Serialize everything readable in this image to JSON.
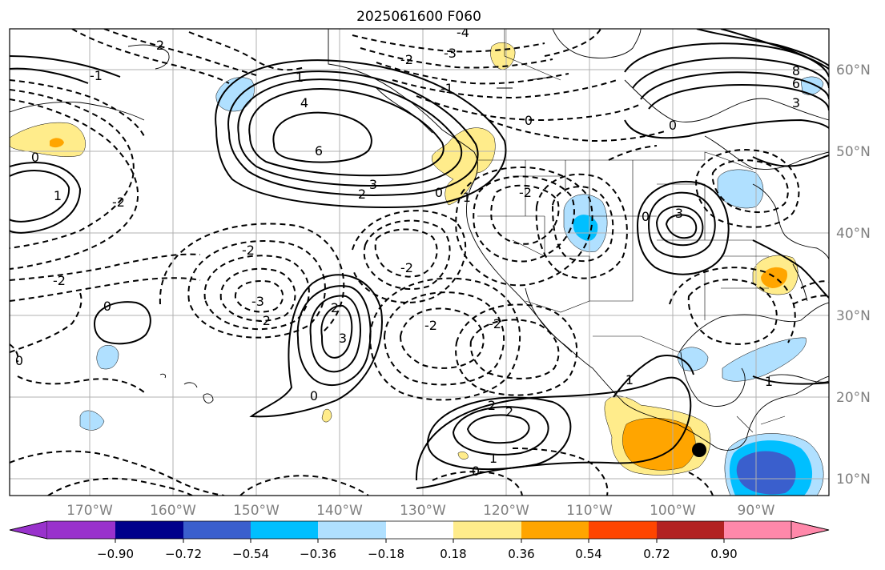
{
  "title": "2025061600 F060",
  "colors": {
    "purple": "#9932cc",
    "navy": "#00008b",
    "mid_blue": "#3a5fcd",
    "sky_blue": "#00bfff",
    "light_blue": "#b0e0ff",
    "white": "#ffffff",
    "light_yellow": "#ffec8b",
    "orange": "#ffa500",
    "red_orange": "#ff4500",
    "firebrick": "#b22222",
    "pink": "#ff88aa"
  },
  "map": {
    "lon_labels": [
      "170°W",
      "160°W",
      "150°W",
      "140°W",
      "130°W",
      "120°W",
      "110°W",
      "100°W",
      "90°W"
    ],
    "lat_labels": [
      "60°N",
      "50°N",
      "40°N",
      "30°N",
      "20°N",
      "10°N"
    ],
    "marker": "black-dot"
  },
  "contour_labels": [
    {
      "id": "c1",
      "text": "6"
    },
    {
      "id": "c2",
      "text": "4"
    },
    {
      "id": "c3",
      "text": "3"
    },
    {
      "id": "c4",
      "text": "2"
    },
    {
      "id": "c5",
      "text": "1"
    },
    {
      "id": "c6",
      "text": "0"
    },
    {
      "id": "c7",
      "text": "-2"
    },
    {
      "id": "c8",
      "text": "-3"
    },
    {
      "id": "c9",
      "text": "-2"
    },
    {
      "id": "c10",
      "text": "-2"
    },
    {
      "id": "c11",
      "text": "0"
    },
    {
      "id": "c12",
      "text": "2"
    },
    {
      "id": "c13",
      "text": "3"
    },
    {
      "id": "c14",
      "text": "0"
    },
    {
      "id": "c15",
      "text": "2"
    },
    {
      "id": "c16",
      "text": "2"
    },
    {
      "id": "c17",
      "text": "0"
    },
    {
      "id": "c18",
      "text": "1"
    },
    {
      "id": "c19",
      "text": "-2"
    },
    {
      "id": "c20",
      "text": "-2"
    },
    {
      "id": "c21",
      "text": "-2"
    },
    {
      "id": "c22",
      "text": "1"
    },
    {
      "id": "c23",
      "text": "8"
    },
    {
      "id": "c24",
      "text": "6"
    },
    {
      "id": "c25",
      "text": "3"
    },
    {
      "id": "c26",
      "text": "0"
    },
    {
      "id": "c27",
      "text": "3"
    },
    {
      "id": "c28",
      "text": "0"
    },
    {
      "id": "c29",
      "text": "-4"
    },
    {
      "id": "c30",
      "text": "-3"
    },
    {
      "id": "c31",
      "text": "-2"
    },
    {
      "id": "c32",
      "text": "-1"
    },
    {
      "id": "c33",
      "text": "0"
    },
    {
      "id": "c34",
      "text": "-1"
    },
    {
      "id": "c35",
      "text": "0"
    },
    {
      "id": "c36",
      "text": "-2"
    },
    {
      "id": "c37",
      "text": "0"
    },
    {
      "id": "c38",
      "text": "-1"
    },
    {
      "id": "c39",
      "text": "-2"
    },
    {
      "id": "c40",
      "text": "1"
    },
    {
      "id": "c41",
      "text": "2"
    },
    {
      "id": "c42",
      "text": "1"
    }
  ],
  "colorbar": {
    "tick_labels": [
      "−0.90",
      "−0.72",
      "−0.54",
      "−0.36",
      "−0.18",
      "0.18",
      "0.36",
      "0.54",
      "0.72",
      "0.90"
    ]
  }
}
